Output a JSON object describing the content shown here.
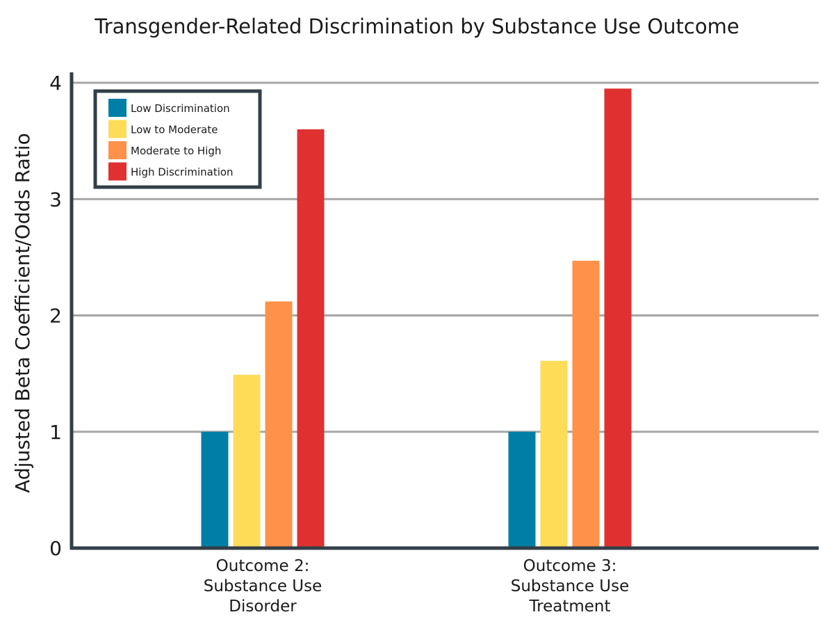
{
  "chart_data": {
    "type": "bar",
    "title": "Transgender-Related Discrimination by Substance Use Outcome",
    "ylabel": "Adjusted Beta Coefficient/Odds Ratio",
    "xlabel": "",
    "ylim": [
      0,
      4
    ],
    "yticks": [
      "0",
      "1",
      "2",
      "3",
      "4"
    ],
    "grid": true,
    "legend_position": "top-left",
    "categories": [
      [
        "Outcome 2:",
        "Substance Use",
        "Disorder"
      ],
      [
        "Outcome 3:",
        "Substance Use",
        "Treatment"
      ]
    ],
    "series": [
      {
        "name": "Low Discrimination",
        "color": "#007fa6",
        "values": [
          1.0,
          1.0
        ]
      },
      {
        "name": "Low to Moderate",
        "color": "#ffdc58",
        "values": [
          1.49,
          1.61
        ]
      },
      {
        "name": "Moderate to High",
        "color": "#ff914a",
        "values": [
          2.12,
          2.47
        ]
      },
      {
        "name": "High Discrimination",
        "color": "#e03030",
        "values": [
          3.6,
          3.95
        ]
      }
    ]
  },
  "colors": {
    "axis": "#333f48",
    "grid": "#a6a6a6",
    "legend_border": "#333f48"
  }
}
